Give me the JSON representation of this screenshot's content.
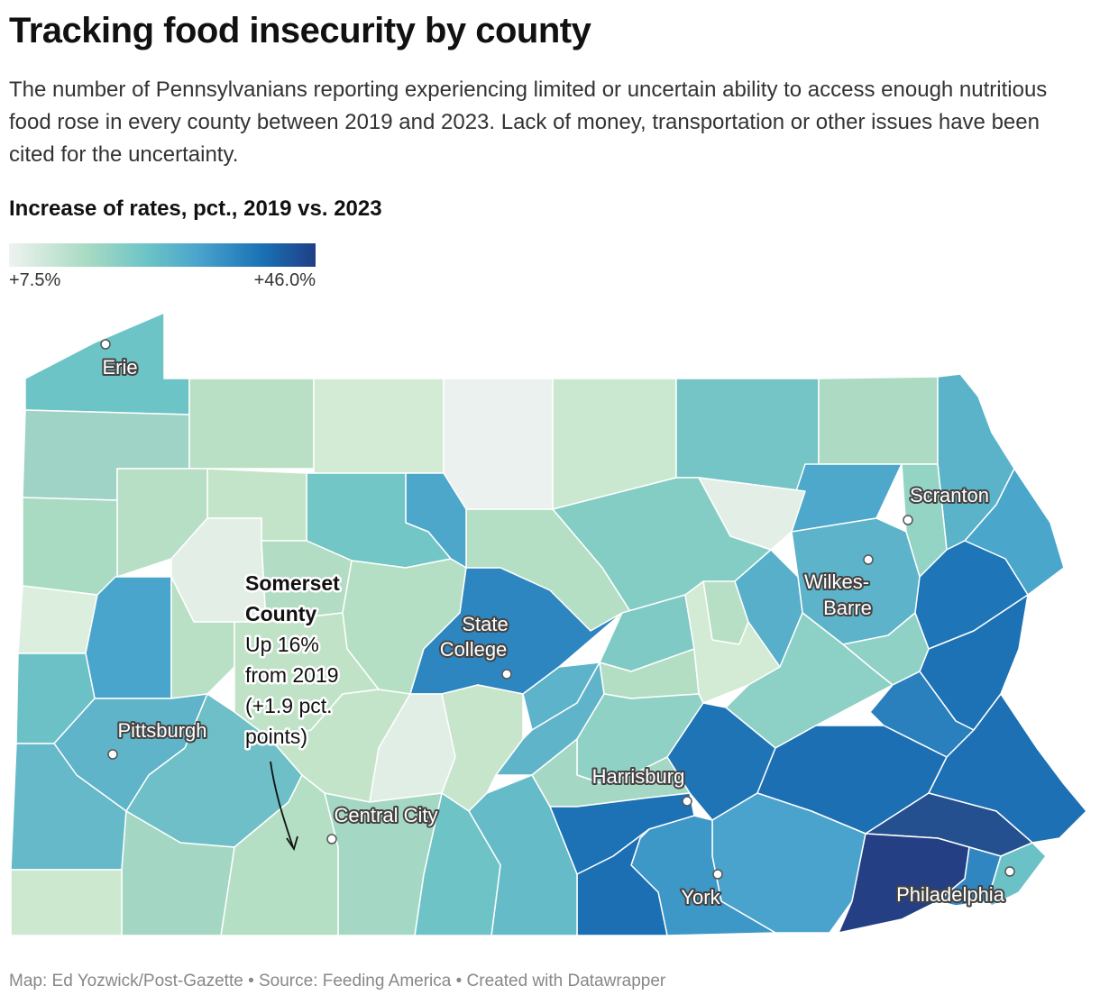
{
  "title": "Tracking food insecurity by county",
  "description": "The number of Pennsylvanians reporting experiencing limited or uncertain ability to access enough nutritious food rose in every county between 2019 and 2023. Lack of money, transportation or other issues have been cited for the uncertainty.",
  "legend": {
    "title": "Increase of rates, pct., 2019 vs. 2023",
    "min_label": "+7.5%",
    "max_label": "+46.0%",
    "colors": [
      "#eef3ef",
      "#a9dbc3",
      "#6cc4c6",
      "#4aa3cc",
      "#1a73b6",
      "#1f3f86"
    ]
  },
  "cities": [
    {
      "name": "Erie"
    },
    {
      "name": "Scranton"
    },
    {
      "name": "Wilkes-",
      "name2": "Barre"
    },
    {
      "name": "State",
      "name2": "College"
    },
    {
      "name": "Pittsburgh"
    },
    {
      "name": "Harrisburg"
    },
    {
      "name": "Central City"
    },
    {
      "name": "York"
    },
    {
      "name": "Philadelphia"
    }
  ],
  "annotation": {
    "county": [
      "Somerset",
      "County"
    ],
    "detail": [
      "Up 16%",
      "from 2019",
      "(+1.9 pct.",
      "points)"
    ]
  },
  "footer": "Map: Ed Yozwick/Post-Gazette • Source: Feeding America • Created with Datawrapper"
}
